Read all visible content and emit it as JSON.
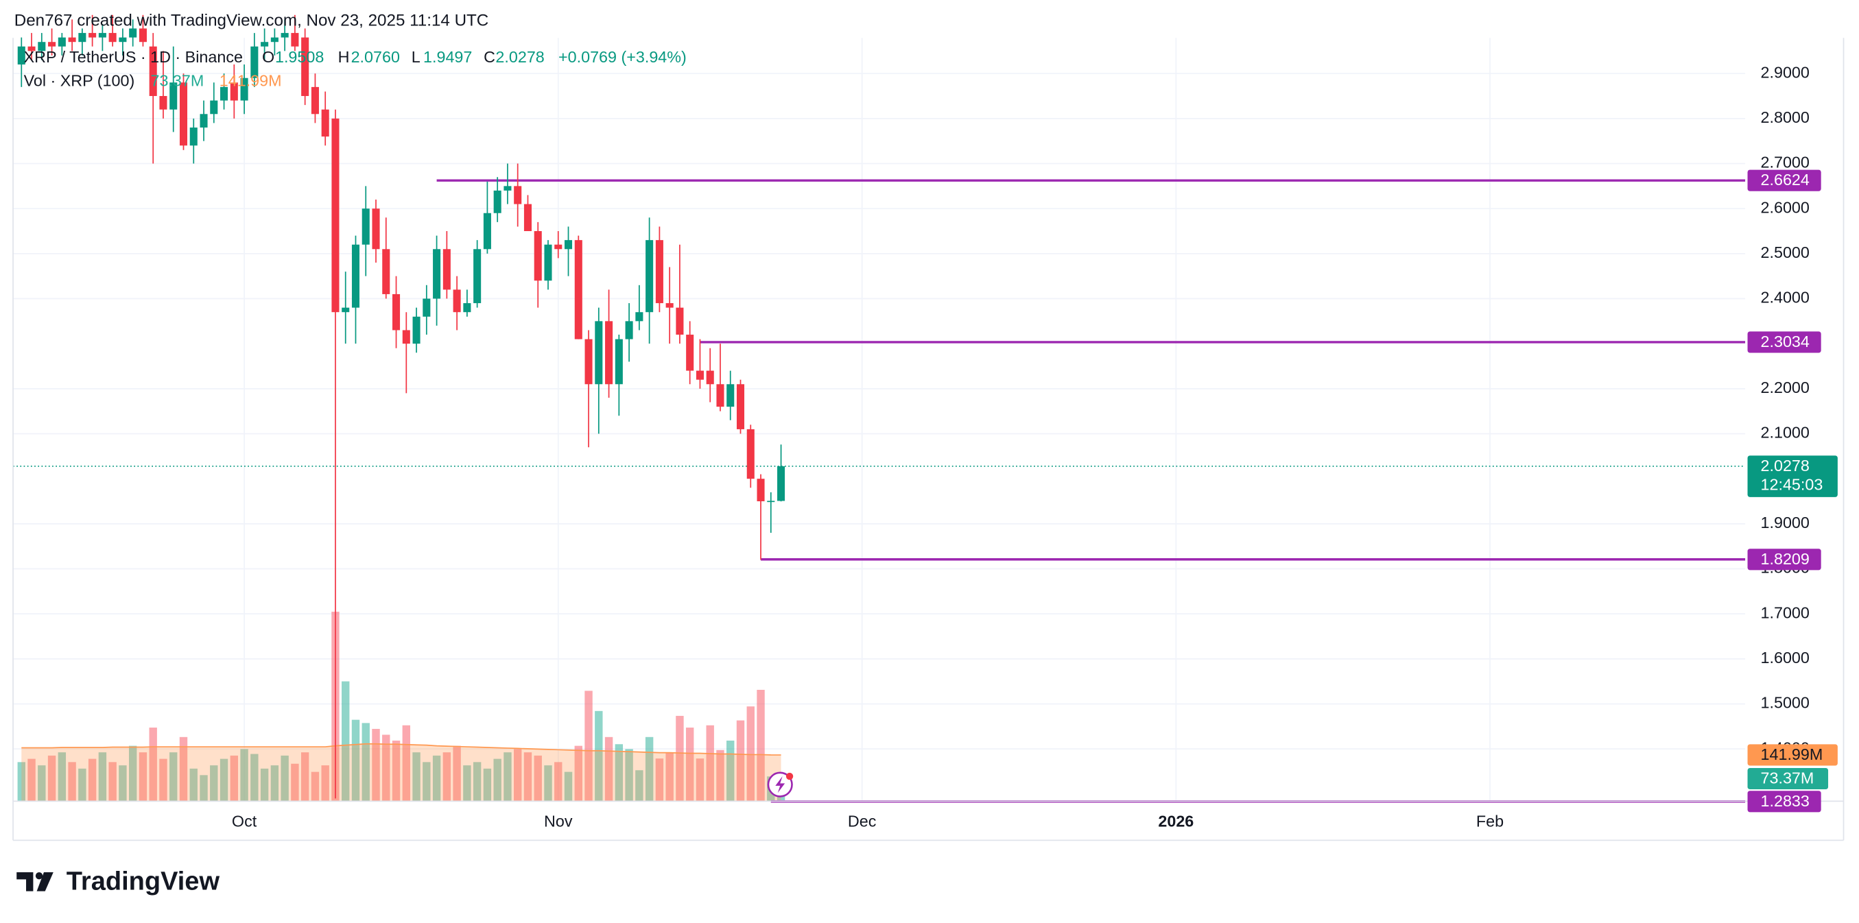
{
  "chart_data": {
    "type": "candlestick",
    "attribution": "Den767 created with TradingView.com, Nov 23, 2025 11:14 UTC",
    "symbol": "XRP / TetherUS · 1D · Binance",
    "header_values": {
      "O": "1.9508",
      "H": "2.0760",
      "L": "1.9497",
      "C": "2.0278"
    },
    "change": "+0.0769 (+3.94%)",
    "volume_title": "Vol · XRP (100)",
    "volume_label": "73.37M",
    "volume_ma_label": "141.99M",
    "up_color": "#089981",
    "down_color": "#f23645",
    "volume_up_color": "#22ab94",
    "volume_down_color": "#f7525f",
    "volume_ma_color": "#ff9850",
    "level_color": "#9c27b0",
    "open": [
      2.92,
      2.96,
      2.95,
      2.97,
      2.96,
      2.98,
      2.97,
      2.99,
      2.98,
      2.99,
      2.97,
      2.98,
      3.0,
      2.96,
      2.85,
      2.82,
      2.88,
      2.74,
      2.78,
      2.81,
      2.84,
      2.88,
      2.84,
      2.89,
      2.96,
      2.97,
      2.98,
      2.99,
      2.98,
      2.87,
      2.82,
      2.8,
      2.37,
      2.38,
      2.52,
      2.6,
      2.51,
      2.41,
      2.33,
      2.3,
      2.36,
      2.4,
      2.51,
      2.42,
      2.37,
      2.39,
      2.51,
      2.59,
      2.64,
      2.65,
      2.61,
      2.55,
      2.44,
      2.52,
      2.51,
      2.53,
      2.31,
      2.21,
      2.35,
      2.21,
      2.31,
      2.35,
      2.37,
      2.53,
      2.39,
      2.38,
      2.32,
      2.24,
      2.24,
      2.21,
      2.16,
      2.21,
      2.11,
      2.0,
      1.95,
      1.9508
    ],
    "high": [
      2.98,
      2.99,
      2.99,
      3.0,
      2.99,
      3.02,
      3.0,
      3.03,
      3.01,
      3.03,
      3.0,
      3.02,
      3.03,
      2.99,
      2.95,
      2.96,
      2.9,
      2.8,
      2.84,
      2.88,
      2.9,
      2.92,
      2.92,
      2.99,
      3.0,
      3.0,
      3.02,
      3.03,
      3.0,
      2.9,
      2.86,
      2.82,
      2.46,
      2.54,
      2.65,
      2.62,
      2.58,
      2.45,
      2.37,
      2.38,
      2.43,
      2.54,
      2.55,
      2.45,
      2.42,
      2.53,
      2.66,
      2.67,
      2.7,
      2.7,
      2.63,
      2.57,
      2.53,
      2.55,
      2.56,
      2.54,
      2.33,
      2.38,
      2.42,
      2.32,
      2.39,
      2.43,
      2.58,
      2.56,
      2.47,
      2.52,
      2.35,
      2.31,
      2.29,
      2.3,
      2.24,
      2.22,
      2.12,
      2.01,
      1.97,
      2.076
    ],
    "low": [
      2.87,
      2.93,
      2.93,
      2.94,
      2.94,
      2.95,
      2.94,
      2.96,
      2.95,
      2.96,
      2.94,
      2.96,
      2.96,
      2.7,
      2.8,
      2.77,
      2.73,
      2.7,
      2.75,
      2.79,
      2.82,
      2.8,
      2.81,
      2.87,
      2.93,
      2.94,
      2.95,
      2.95,
      2.83,
      2.79,
      2.74,
      1.29,
      2.3,
      2.3,
      2.45,
      2.48,
      2.4,
      2.29,
      2.19,
      2.28,
      2.32,
      2.34,
      2.4,
      2.33,
      2.36,
      2.38,
      2.5,
      2.57,
      2.61,
      2.56,
      2.55,
      2.38,
      2.42,
      2.49,
      2.45,
      2.31,
      2.07,
      2.1,
      2.18,
      2.14,
      2.26,
      2.33,
      2.3,
      2.37,
      2.3,
      2.3,
      2.21,
      2.2,
      2.17,
      2.15,
      2.13,
      2.1,
      1.98,
      1.82,
      1.88,
      1.9497
    ],
    "close": [
      2.96,
      2.95,
      2.97,
      2.96,
      2.98,
      2.97,
      2.99,
      2.98,
      2.99,
      2.97,
      2.98,
      3.0,
      2.97,
      2.85,
      2.82,
      2.88,
      2.74,
      2.78,
      2.81,
      2.84,
      2.87,
      2.84,
      2.89,
      2.96,
      2.97,
      2.98,
      2.99,
      2.96,
      2.85,
      2.81,
      2.76,
      2.37,
      2.38,
      2.52,
      2.6,
      2.51,
      2.41,
      2.33,
      2.3,
      2.36,
      2.4,
      2.51,
      2.42,
      2.37,
      2.39,
      2.51,
      2.59,
      2.64,
      2.65,
      2.61,
      2.55,
      2.44,
      2.52,
      2.51,
      2.53,
      2.31,
      2.21,
      2.35,
      2.21,
      2.31,
      2.35,
      2.37,
      2.53,
      2.39,
      2.38,
      2.32,
      2.24,
      2.22,
      2.21,
      2.16,
      2.21,
      2.11,
      2.0,
      1.95,
      1.9509,
      2.0278
    ],
    "volume": [
      120,
      130,
      110,
      140,
      150,
      120,
      100,
      130,
      150,
      120,
      110,
      170,
      150,
      226,
      130,
      150,
      197,
      100,
      80,
      110,
      130,
      140,
      160,
      145,
      100,
      110,
      140,
      115,
      150,
      90,
      110,
      582,
      368,
      250,
      240,
      222,
      204,
      186,
      233,
      150,
      120,
      140,
      150,
      170,
      110,
      120,
      100,
      130,
      150,
      160,
      150,
      140,
      110,
      120,
      90,
      170,
      339,
      277,
      197,
      175,
      160,
      95,
      197,
      131,
      149,
      262,
      226,
      131,
      233,
      157,
      186,
      248,
      291,
      342,
      76,
      73.37
    ],
    "volume_ma": [
      164,
      164,
      164,
      164,
      165,
      165,
      165,
      165,
      165,
      166,
      166,
      166,
      166,
      167,
      167,
      167,
      167,
      167,
      167,
      167,
      167,
      167,
      167,
      167,
      167,
      167,
      167,
      167,
      167,
      167,
      167,
      170,
      172,
      174,
      176,
      176,
      175,
      175,
      174,
      173,
      172,
      170,
      169,
      168,
      167,
      166,
      165,
      164,
      163,
      162,
      161,
      160,
      159,
      158,
      157,
      156,
      155,
      155,
      154,
      153,
      152,
      151,
      150,
      149,
      149,
      148,
      147,
      147,
      146,
      145,
      145,
      144,
      143,
      143,
      142,
      141.99
    ],
    "ylim": [
      1.284,
      2.979
    ],
    "yticks": [
      {
        "value": 1.4,
        "label": "1.4000"
      },
      {
        "value": 1.5,
        "label": "1.5000"
      },
      {
        "value": 1.6,
        "label": "1.6000"
      },
      {
        "value": 1.7,
        "label": "1.7000"
      },
      {
        "value": 1.8,
        "label": "1.8000"
      },
      {
        "value": 1.9,
        "label": "1.9000"
      },
      {
        "value": 2.1,
        "label": "2.1000"
      },
      {
        "value": 2.2,
        "label": "2.2000"
      },
      {
        "value": 2.4,
        "label": "2.4000"
      },
      {
        "value": 2.5,
        "label": "2.5000"
      },
      {
        "value": 2.6,
        "label": "2.6000"
      },
      {
        "value": 2.7,
        "label": "2.7000"
      },
      {
        "value": 2.8,
        "label": "2.8000"
      },
      {
        "value": 2.9,
        "label": "2.9000"
      }
    ],
    "xlim": [
      -0.83,
      170.2
    ],
    "xticks": [
      {
        "value": 22,
        "label": "Oct"
      },
      {
        "value": 53,
        "label": "Nov"
      },
      {
        "value": 83,
        "label": "Dec"
      },
      {
        "value": 114,
        "label": "2026"
      },
      {
        "value": 145,
        "label": "Feb"
      }
    ],
    "grid": true,
    "levels": [
      {
        "value": 2.6624,
        "from": 41
      },
      {
        "value": 2.3034,
        "from": 67
      },
      {
        "value": 1.8209,
        "from": 73
      },
      {
        "value": 1.2833,
        "from": 74
      }
    ],
    "price_line": {
      "value": 2.0278,
      "label": "2.0278",
      "countdown": "12:45:03"
    }
  },
  "footer_logo": "TradingView"
}
